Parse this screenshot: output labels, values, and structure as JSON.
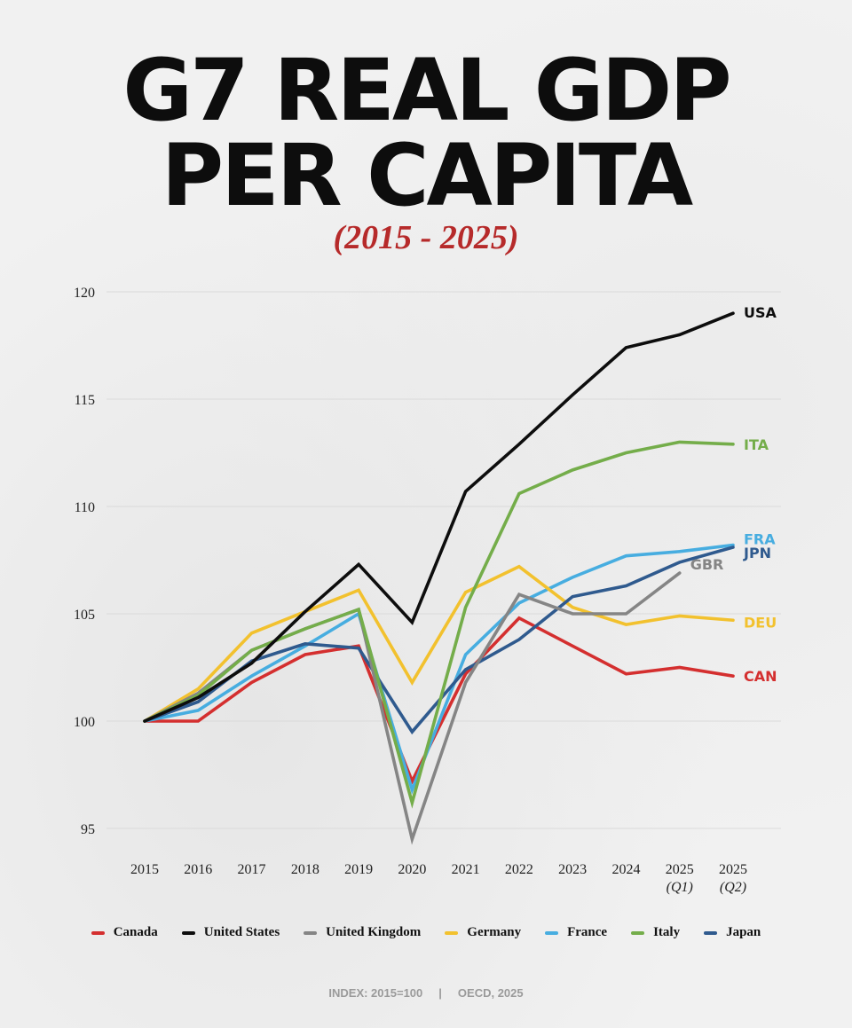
{
  "title_line1": "G7 REAL GDP",
  "title_line2": "PER CAPITA",
  "subtitle": "(2015 - 2025)",
  "footer": {
    "index": "INDEX: 2015=100",
    "separator": "|",
    "source": "OECD, 2025"
  },
  "chart_data": {
    "type": "line",
    "x": [
      "2015",
      "2016",
      "2017",
      "2018",
      "2019",
      "2020",
      "2021",
      "2022",
      "2023",
      "2024",
      "2025 (Q1)",
      "2025 (Q2)"
    ],
    "x_tick_labels": [
      [
        "2015"
      ],
      [
        "2016"
      ],
      [
        "2017"
      ],
      [
        "2018"
      ],
      [
        "2019"
      ],
      [
        "2020"
      ],
      [
        "2021"
      ],
      [
        "2022"
      ],
      [
        "2023"
      ],
      [
        "2024"
      ],
      [
        "2025",
        "(Q1)"
      ],
      [
        "2025",
        "(Q2)"
      ]
    ],
    "ylim": [
      94,
      120
    ],
    "yticks": [
      95,
      100,
      105,
      110,
      115,
      120
    ],
    "grid": true,
    "legend_position": "bottom",
    "series": [
      {
        "name": "Canada",
        "label": "CAN",
        "color": "#d42f2f",
        "values": [
          100,
          100,
          101.8,
          103.1,
          103.5,
          97.2,
          102.2,
          104.8,
          103.5,
          102.2,
          102.5,
          102.1
        ]
      },
      {
        "name": "United States",
        "label": "USA",
        "color": "#0d0d0d",
        "values": [
          100,
          101.1,
          102.7,
          105.1,
          107.3,
          104.6,
          110.7,
          112.9,
          115.2,
          117.4,
          118.0,
          119.0
        ]
      },
      {
        "name": "United Kingdom",
        "label": "GBR",
        "color": "#858585",
        "values": [
          100,
          101.3,
          103.3,
          104.3,
          105.2,
          94.5,
          101.8,
          105.9,
          105.0,
          105.0,
          106.9,
          null
        ]
      },
      {
        "name": "Germany",
        "label": "DEU",
        "color": "#f2c12e",
        "values": [
          100,
          101.5,
          104.1,
          105.1,
          106.1,
          101.8,
          106.0,
          107.2,
          105.3,
          104.5,
          104.9,
          104.7
        ]
      },
      {
        "name": "France",
        "label": "FRA",
        "color": "#47ade0",
        "values": [
          100,
          100.5,
          102.1,
          103.5,
          105.0,
          96.8,
          103.1,
          105.5,
          106.7,
          107.7,
          107.9,
          108.2
        ]
      },
      {
        "name": "Italy",
        "label": "ITA",
        "color": "#74ad4a",
        "values": [
          100,
          101.2,
          103.3,
          104.3,
          105.2,
          96.2,
          105.3,
          110.6,
          111.7,
          112.5,
          113.0,
          112.9
        ]
      },
      {
        "name": "Japan",
        "label": "JPN",
        "color": "#2f5a8e",
        "values": [
          100,
          100.9,
          102.8,
          103.6,
          103.4,
          99.5,
          102.4,
          103.8,
          105.8,
          106.3,
          107.4,
          108.1
        ]
      }
    ],
    "legend_order": [
      "Canada",
      "United States",
      "United Kingdom",
      "Germany",
      "France",
      "Italy",
      "Japan"
    ]
  }
}
